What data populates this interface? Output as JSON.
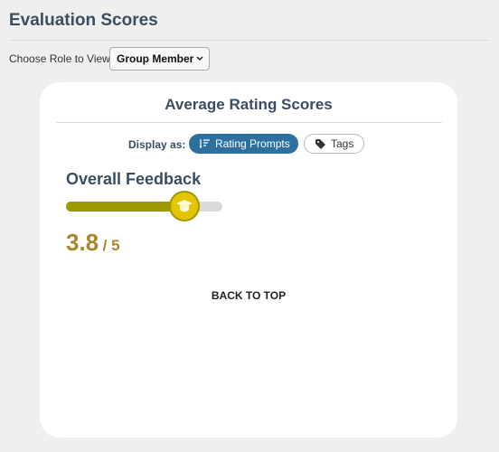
{
  "header": {
    "title": "Evaluation Scores"
  },
  "role_picker": {
    "label": "Choose Role to View:",
    "selected": "Group Member"
  },
  "card": {
    "title": "Average Rating Scores",
    "display": {
      "label": "Display as:",
      "options": [
        "Rating Prompts",
        "Tags"
      ]
    },
    "feedback": {
      "title": "Overall Feedback",
      "score": 3.8,
      "separator": "/",
      "max": 5
    },
    "back_to_top": "BACK TO TOP"
  }
}
